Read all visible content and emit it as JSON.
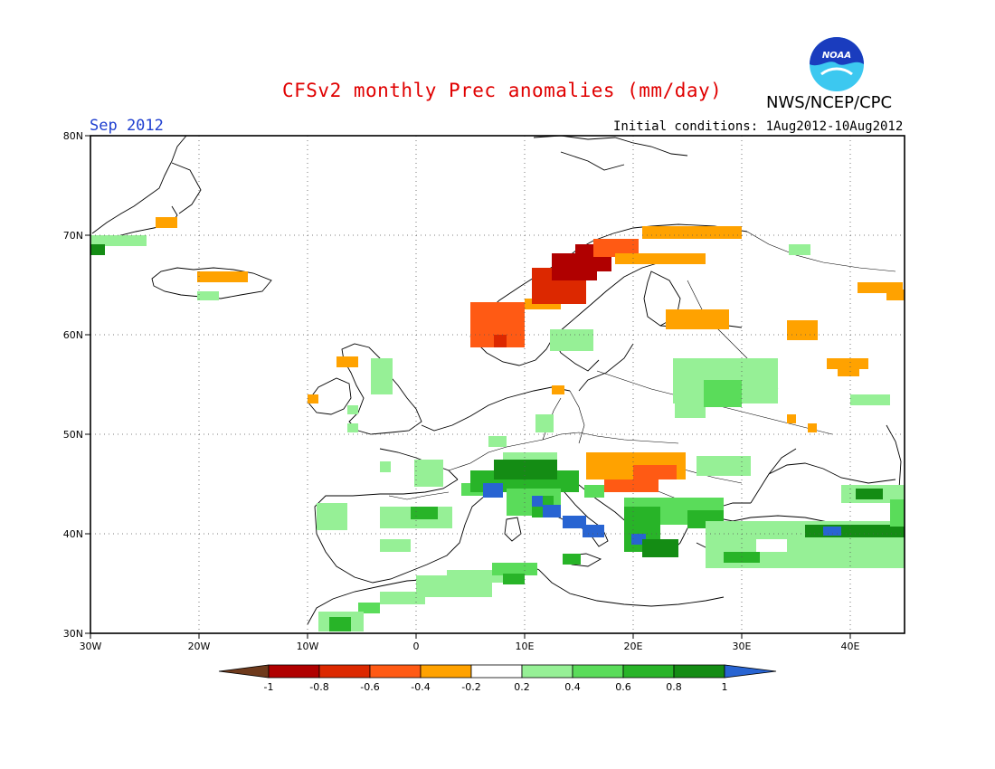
{
  "title": "CFSv2 monthly Prec anomalies (mm/day)",
  "month": "Sep 2012",
  "initial_conditions": "Initial conditions: 1Aug2012-10Aug2012",
  "agency": "NWS/NCEP/CPC",
  "logo_text": "NOAA",
  "lat_labels": [
    "80N",
    "70N",
    "60N",
    "50N",
    "40N",
    "30N"
  ],
  "lon_labels": [
    "30W",
    "20W",
    "10W",
    "0",
    "10E",
    "20E",
    "30E",
    "40E"
  ],
  "colorbar": {
    "ticks": [
      "-1",
      "-0.8",
      "-0.6",
      "-0.4",
      "-0.2",
      "0.2",
      "0.4",
      "0.6",
      "0.8",
      "1"
    ],
    "colors": [
      "#6e3a1c",
      "#b00000",
      "#dc2800",
      "#ff5a14",
      "#ffa200",
      "#ffffff",
      "#96f096",
      "#5adc5a",
      "#28b428",
      "#148c14",
      "#2864d2"
    ]
  },
  "colors": {
    "title": "#e00000",
    "month": "#2040d0",
    "logo_blue": "#1a3cbe",
    "logo_cyan": "#3cc8f0"
  }
}
